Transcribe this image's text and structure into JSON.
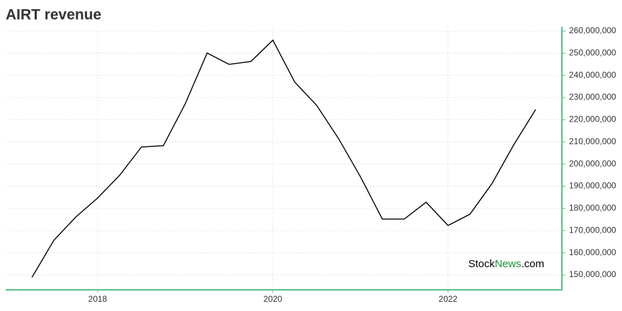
{
  "chart_data": {
    "type": "line",
    "title": "AIRT revenue",
    "watermark": [
      "Stock",
      "News",
      ".com"
    ],
    "x": [
      2017.25,
      2017.5,
      2017.75,
      2018,
      2018.25,
      2018.5,
      2018.75,
      2019,
      2019.25,
      2019.5,
      2019.75,
      2020,
      2020.25,
      2020.5,
      2020.75,
      2021,
      2021.25,
      2021.5,
      2021.75,
      2022,
      2022.25,
      2022.5,
      2022.75,
      2023
    ],
    "series": [
      {
        "name": "AIRT revenue",
        "color": "#000000",
        "values": [
          148900000,
          165600000,
          176100000,
          184700000,
          194900000,
          207700000,
          208300000,
          227200000,
          250100000,
          245000000,
          246300000,
          255900000,
          237000000,
          226500000,
          211500000,
          194300000,
          175200000,
          175200000,
          182800000,
          172300000,
          177400000,
          191100000,
          208700000,
          224600000
        ]
      }
    ],
    "xlim": [
      2016.95,
      2023.3
    ],
    "xticks": [
      2018,
      2020,
      2022
    ],
    "ylim": [
      143300000,
      261900000
    ],
    "yticks": [
      {
        "value": 150000000,
        "label": "150,000,000"
      },
      {
        "value": 160000000,
        "label": "160,000,000"
      },
      {
        "value": 170000000,
        "label": "170,000,000"
      },
      {
        "value": 180000000,
        "label": "180,000,000"
      },
      {
        "value": 190000000,
        "label": "190,000,000"
      },
      {
        "value": 200000000,
        "label": "200,000,000"
      },
      {
        "value": 210000000,
        "label": "210,000,000"
      },
      {
        "value": 220000000,
        "label": "220,000,000"
      },
      {
        "value": 230000000,
        "label": "230,000,000"
      },
      {
        "value": 240000000,
        "label": "240,000,000"
      },
      {
        "value": 250000000,
        "label": "250,000,000"
      },
      {
        "value": 260000000,
        "label": "260,000,000"
      }
    ],
    "grid": true,
    "axis_color": "#5cbf8a",
    "title_color": "#4cbb7f"
  }
}
